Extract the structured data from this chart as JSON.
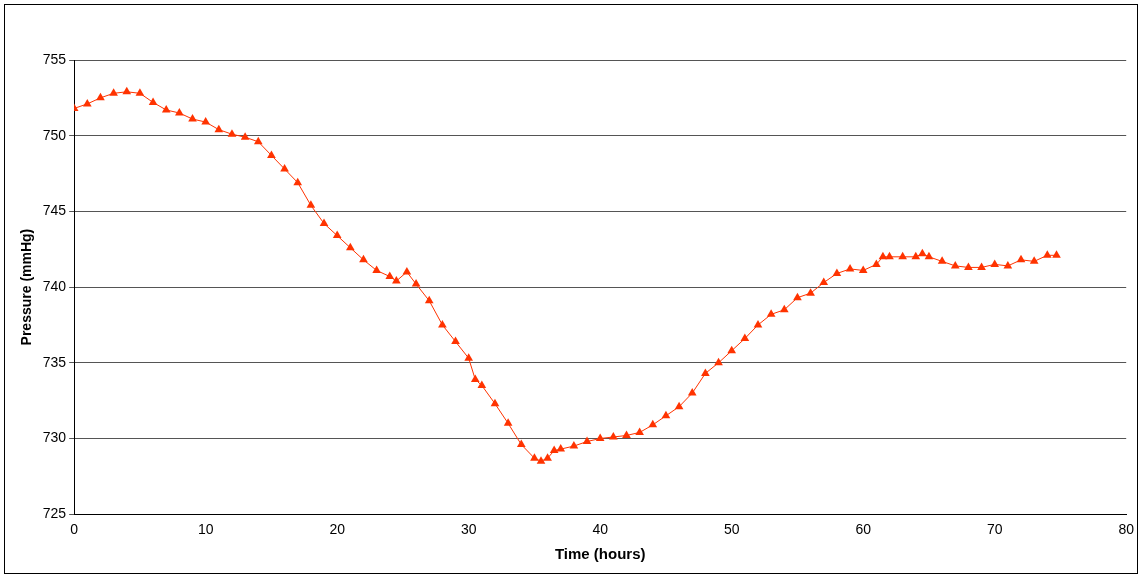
{
  "chart_data": {
    "type": "line",
    "xlabel": "Time (hours)",
    "ylabel": "Pressure (mmHg)",
    "xlim": [
      0,
      80
    ],
    "xticks": [
      0,
      10,
      20,
      30,
      40,
      50,
      60,
      70,
      80
    ],
    "ylim": [
      725,
      755
    ],
    "yticks": [
      725,
      730,
      735,
      740,
      745,
      750,
      755
    ],
    "grid": "y",
    "legend": false,
    "marker": "triangle",
    "line_style": "solid",
    "series": [
      {
        "color": "#ff3300",
        "x": [
          0,
          1,
          2,
          3,
          4,
          5,
          6,
          7,
          8,
          9,
          10,
          11,
          12,
          13,
          14,
          15,
          16,
          17,
          18,
          19,
          20,
          21,
          22,
          23,
          24,
          24.5,
          25.3,
          26,
          27,
          28,
          29,
          30,
          30.5,
          31,
          32,
          33,
          34,
          35,
          35.5,
          36,
          36.5,
          37,
          38,
          39,
          40,
          41,
          42,
          43,
          44,
          45,
          46,
          47,
          48,
          49,
          50,
          51,
          52,
          53,
          54,
          55,
          56,
          57,
          58,
          59,
          60,
          61,
          61.5,
          62,
          63,
          64,
          64.5,
          65,
          66,
          67,
          68,
          69,
          70,
          71,
          72,
          73,
          74,
          74.7
        ],
        "values": [
          751.8,
          752.1,
          752.5,
          752.8,
          752.9,
          752.8,
          752.2,
          751.7,
          751.5,
          751.1,
          750.9,
          750.4,
          750.1,
          749.9,
          749.6,
          748.7,
          747.8,
          746.9,
          745.4,
          744.2,
          743.4,
          742.6,
          741.8,
          741.1,
          740.7,
          740.4,
          741.0,
          740.2,
          739.1,
          737.5,
          736.4,
          735.3,
          733.9,
          733.5,
          732.3,
          731.0,
          729.6,
          728.7,
          728.5,
          728.7,
          729.2,
          729.3,
          729.5,
          729.8,
          730.0,
          730.1,
          730.2,
          730.4,
          730.9,
          731.5,
          732.1,
          733.0,
          734.3,
          735.0,
          735.8,
          736.6,
          737.5,
          738.2,
          738.5,
          739.3,
          739.6,
          740.3,
          740.9,
          741.2,
          741.1,
          741.5,
          742.0,
          742.0,
          742.0,
          742.0,
          742.2,
          742.0,
          741.7,
          741.4,
          741.3,
          741.3,
          741.5,
          741.4,
          741.8,
          741.7,
          742.1,
          742.1
        ]
      }
    ]
  }
}
